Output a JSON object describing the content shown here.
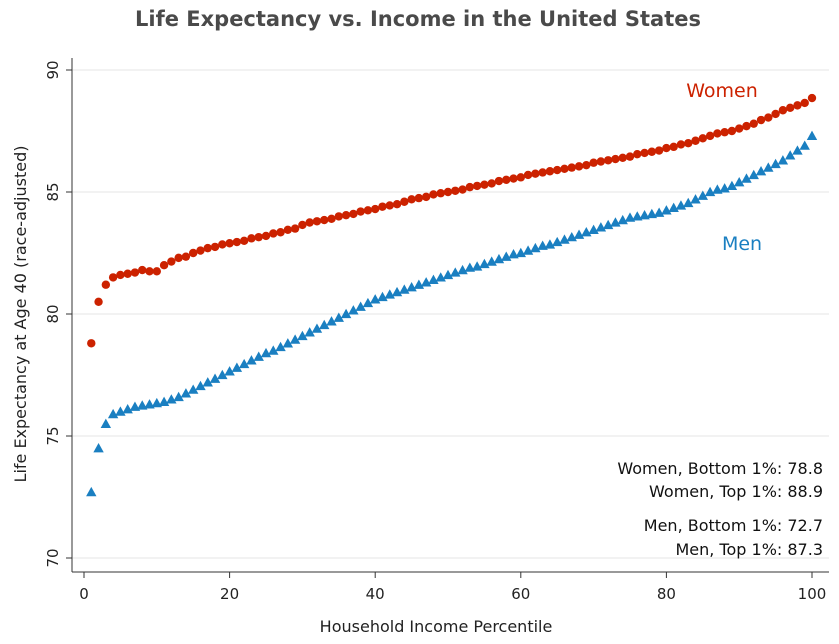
{
  "chart_data": {
    "type": "scatter",
    "title": "Life Expectancy vs. Income in the United States",
    "xlabel": "Household Income Percentile",
    "ylabel": "Life Expectancy at Age 40 (race-adjusted)",
    "xlim": [
      0,
      100
    ],
    "ylim": [
      70,
      90
    ],
    "xticks": [
      0,
      20,
      40,
      60,
      80,
      100
    ],
    "yticks": [
      70,
      75,
      80,
      85,
      90
    ],
    "grid": "horizontal",
    "x": [
      1,
      2,
      3,
      4,
      5,
      6,
      7,
      8,
      9,
      10,
      11,
      12,
      13,
      14,
      15,
      16,
      17,
      18,
      19,
      20,
      21,
      22,
      23,
      24,
      25,
      26,
      27,
      28,
      29,
      30,
      31,
      32,
      33,
      34,
      35,
      36,
      37,
      38,
      39,
      40,
      41,
      42,
      43,
      44,
      45,
      46,
      47,
      48,
      49,
      50,
      51,
      52,
      53,
      54,
      55,
      56,
      57,
      58,
      59,
      60,
      61,
      62,
      63,
      64,
      65,
      66,
      67,
      68,
      69,
      70,
      71,
      72,
      73,
      74,
      75,
      76,
      77,
      78,
      79,
      80,
      81,
      82,
      83,
      84,
      85,
      86,
      87,
      88,
      89,
      90,
      91,
      92,
      93,
      94,
      95,
      96,
      97,
      98,
      99,
      100
    ],
    "series": [
      {
        "name": "Women",
        "color": "#cc2200",
        "marker": "circle",
        "values": [
          78.8,
          80.5,
          81.2,
          81.5,
          81.6,
          81.65,
          81.7,
          81.8,
          81.75,
          81.75,
          82.0,
          82.15,
          82.3,
          82.35,
          82.5,
          82.6,
          82.7,
          82.75,
          82.85,
          82.9,
          82.95,
          83.0,
          83.1,
          83.15,
          83.2,
          83.3,
          83.35,
          83.45,
          83.5,
          83.65,
          83.75,
          83.8,
          83.85,
          83.9,
          84.0,
          84.05,
          84.1,
          84.2,
          84.25,
          84.3,
          84.4,
          84.45,
          84.5,
          84.6,
          84.7,
          84.75,
          84.8,
          84.9,
          84.95,
          85.0,
          85.05,
          85.1,
          85.2,
          85.25,
          85.3,
          85.35,
          85.45,
          85.5,
          85.55,
          85.6,
          85.7,
          85.75,
          85.8,
          85.85,
          85.9,
          85.95,
          86.0,
          86.05,
          86.1,
          86.2,
          86.25,
          86.3,
          86.35,
          86.4,
          86.45,
          86.55,
          86.6,
          86.65,
          86.7,
          86.8,
          86.85,
          86.95,
          87.0,
          87.1,
          87.2,
          87.3,
          87.4,
          87.45,
          87.5,
          87.6,
          87.7,
          87.8,
          87.95,
          88.05,
          88.2,
          88.35,
          88.45,
          88.55,
          88.65,
          88.85
        ]
      },
      {
        "name": "Men",
        "color": "#1a7fc1",
        "marker": "triangle",
        "values": [
          72.7,
          74.5,
          75.5,
          75.9,
          76.0,
          76.1,
          76.2,
          76.25,
          76.3,
          76.35,
          76.4,
          76.5,
          76.6,
          76.75,
          76.9,
          77.05,
          77.2,
          77.35,
          77.5,
          77.65,
          77.8,
          77.95,
          78.1,
          78.25,
          78.4,
          78.5,
          78.65,
          78.8,
          78.95,
          79.1,
          79.25,
          79.4,
          79.55,
          79.7,
          79.85,
          80.0,
          80.15,
          80.3,
          80.45,
          80.6,
          80.7,
          80.8,
          80.9,
          81.0,
          81.1,
          81.2,
          81.3,
          81.4,
          81.5,
          81.6,
          81.7,
          81.8,
          81.9,
          81.95,
          82.05,
          82.15,
          82.25,
          82.35,
          82.45,
          82.5,
          82.6,
          82.7,
          82.8,
          82.85,
          82.95,
          83.05,
          83.15,
          83.25,
          83.35,
          83.45,
          83.55,
          83.65,
          83.75,
          83.85,
          83.95,
          84.0,
          84.05,
          84.1,
          84.15,
          84.25,
          84.35,
          84.45,
          84.55,
          84.7,
          84.85,
          85.0,
          85.1,
          85.15,
          85.25,
          85.4,
          85.55,
          85.7,
          85.85,
          86.0,
          86.15,
          86.3,
          86.5,
          86.7,
          86.9,
          87.3
        ]
      }
    ],
    "annotations": [
      "Women, Bottom 1%: 78.8",
      "Women, Top 1%: 88.9",
      "Men, Bottom 1%: 72.7",
      "Men, Top 1%: 87.3"
    ]
  }
}
